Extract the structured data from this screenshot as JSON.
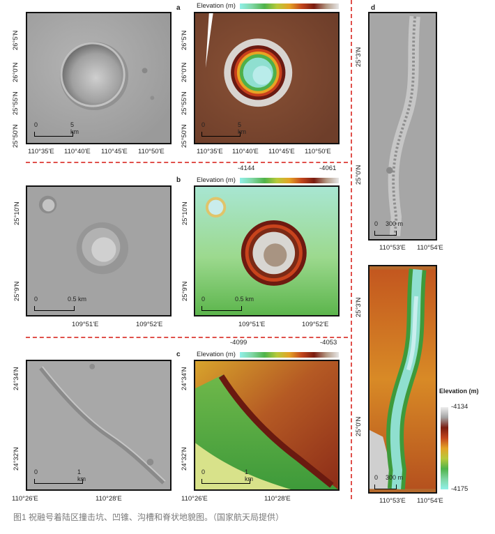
{
  "rows": {
    "a": {
      "letter": "a",
      "lat_labels": [
        "26°5'N",
        "26°0'N",
        "25°55'N",
        "25°50'N"
      ],
      "lon_labels": [
        "110°35'E",
        "110°40'E",
        "110°45'E",
        "110°50'E"
      ],
      "scale": {
        "start": "0",
        "end": "5 km"
      },
      "colorbar": {
        "label": "Elevation (m)",
        "min": "",
        "max": ""
      }
    },
    "b": {
      "letter": "b",
      "lat_labels": [
        "25°10'N",
        "25°9'N"
      ],
      "lon_labels": [
        "109°51'E",
        "109°52'E"
      ],
      "scale": {
        "start": "0",
        "end": "0.5 km"
      },
      "colorbar": {
        "label": "Elevation (m)",
        "min": "-4144",
        "max": "-4061"
      }
    },
    "c": {
      "letter": "c",
      "lat_labels": [
        "24°34'N",
        "24°32'N"
      ],
      "lon_labels": [
        "110°26'E",
        "110°28'E"
      ],
      "scale": {
        "start": "0",
        "end": "1 km"
      },
      "colorbar": {
        "label": "Elevation (m)",
        "min": "-4099",
        "max": "-4053"
      }
    },
    "d": {
      "letter": "d",
      "lat_labels": [
        "25°3'N",
        "25°0'N"
      ],
      "lon_labels": [
        "110°53'E",
        "110°54'E"
      ],
      "scale": {
        "start": "0",
        "end": "300 m"
      },
      "colorbar": {
        "label": "Elevation (m)",
        "max": "-4134",
        "min": "-4175"
      }
    }
  },
  "caption": "图1 祝融号着陆区撞击坑、凹锥、沟槽和脊状地貌图。（国家航天局提供）"
}
